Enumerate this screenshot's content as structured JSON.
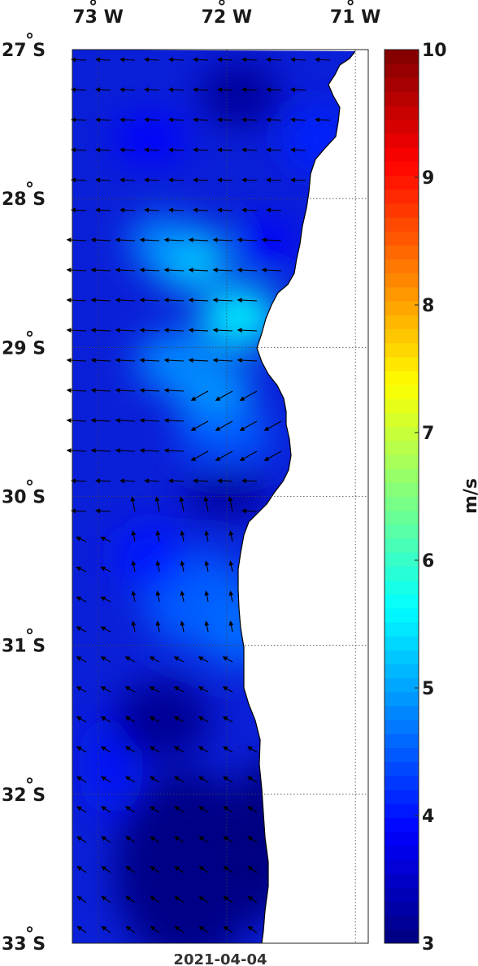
{
  "map": {
    "date": "2021-04-04",
    "lon_labels": [
      {
        "deg": "73",
        "hemi": "W",
        "value": -73
      },
      {
        "deg": "72",
        "hemi": "W",
        "value": -72
      },
      {
        "deg": "71",
        "hemi": "W",
        "value": -71
      }
    ],
    "lat_labels": [
      {
        "deg": "27",
        "hemi": "S",
        "value": -27
      },
      {
        "deg": "28",
        "hemi": "S",
        "value": -28
      },
      {
        "deg": "29",
        "hemi": "S",
        "value": -29
      },
      {
        "deg": "30",
        "hemi": "S",
        "value": -30
      },
      {
        "deg": "31",
        "hemi": "S",
        "value": -31
      },
      {
        "deg": "32",
        "hemi": "S",
        "value": -32
      },
      {
        "deg": "33",
        "hemi": "S",
        "value": -33
      }
    ],
    "degree_symbol": "°",
    "lon_range": [
      -73.2,
      -70.9
    ],
    "lat_range": [
      -33,
      -27
    ],
    "grid": "dotted",
    "land_color": "#ffffff",
    "vector_color": "#000000"
  },
  "colorbar": {
    "label": "m/s",
    "range": [
      3,
      10
    ],
    "ticks": [
      "3",
      "4",
      "5",
      "6",
      "7",
      "8",
      "9",
      "10"
    ],
    "colormap": "jet"
  },
  "chart_data": {
    "type": "heatmap",
    "variable": "wind speed",
    "units": "m/s",
    "colorbar_range": [
      3,
      10
    ],
    "field_min_approx": 3.0,
    "field_max_approx": 5.5,
    "high_speed_centers": [
      {
        "lon": -72.3,
        "lat": -28.4,
        "speed": 5.3
      },
      {
        "lon": -71.9,
        "lat": -28.8,
        "speed": 5.5
      },
      {
        "lon": -72.1,
        "lat": -29.3,
        "speed": 4.9
      },
      {
        "lon": -72.4,
        "lat": -29.1,
        "speed": 4.8
      }
    ],
    "wind_direction_general": "westward / north-westward along the coast"
  }
}
